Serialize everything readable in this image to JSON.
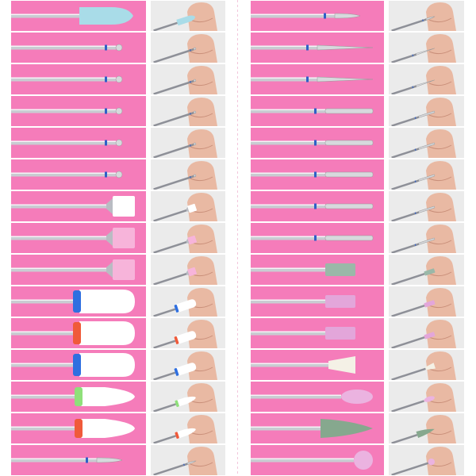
{
  "colors": {
    "background": "#f57cba",
    "thumb_background": "#ebebeb",
    "metal": "#c9ccd2",
    "skin": "#e9b9a3"
  },
  "columns": [
    {
      "bits": [
        {
          "type": "silicone-cone",
          "head": "#a9dce8",
          "band": null
        },
        {
          "type": "ball",
          "head": "#d7d9dd",
          "band": "#2f5fc8"
        },
        {
          "type": "ball",
          "head": "#d7d9dd",
          "band": "#2f5fc8"
        },
        {
          "type": "ball",
          "head": "#d7d9dd",
          "band": "#2f5fc8"
        },
        {
          "type": "ball",
          "head": "#d7d9dd",
          "band": "#2f5fc8"
        },
        {
          "type": "ball",
          "head": "#d7d9dd",
          "band": "#2f5fc8"
        },
        {
          "type": "brush",
          "head": "#ffffff",
          "band": null
        },
        {
          "type": "brush",
          "head": "#f7b4da",
          "band": null
        },
        {
          "type": "brush",
          "head": "#f7b4da",
          "band": null
        },
        {
          "type": "ceramic-barrel",
          "head": "#ffffff",
          "band": "#2f6fe0"
        },
        {
          "type": "ceramic-barrel",
          "head": "#ffffff",
          "band": "#f05a3a"
        },
        {
          "type": "ceramic-barrel",
          "head": "#ffffff",
          "band": "#2f6fe0"
        },
        {
          "type": "ceramic-cone",
          "head": "#ffffff",
          "band": "#8fe07a"
        },
        {
          "type": "ceramic-cone",
          "head": "#ffffff",
          "band": "#f05a3a"
        },
        {
          "type": "flame",
          "head": "#d7d9dd",
          "band": "#2f5fc8"
        }
      ]
    },
    {
      "bits": [
        {
          "type": "flame",
          "head": "#d7d9dd",
          "band": "#2f5fc8"
        },
        {
          "type": "needle",
          "head": "#d7d9dd",
          "band": "#2f5fc8"
        },
        {
          "type": "needle",
          "head": "#d7d9dd",
          "band": "#2f5fc8"
        },
        {
          "type": "cylinder",
          "head": "#d7d9dd",
          "band": "#2f5fc8"
        },
        {
          "type": "cylinder",
          "head": "#d7d9dd",
          "band": "#2f5fc8"
        },
        {
          "type": "cylinder",
          "head": "#d7d9dd",
          "band": "#2f5fc8"
        },
        {
          "type": "cylinder",
          "head": "#d7d9dd",
          "band": "#2f5fc8"
        },
        {
          "type": "cylinder",
          "head": "#d7d9dd",
          "band": "#2f5fc8"
        },
        {
          "type": "stone-cylinder",
          "head": "#9ab8a8",
          "band": null
        },
        {
          "type": "stone-cylinder",
          "head": "#e3a6da",
          "band": null
        },
        {
          "type": "stone-cylinder",
          "head": "#e3a6da",
          "band": null
        },
        {
          "type": "stone-cone",
          "head": "#f4f1e6",
          "band": null
        },
        {
          "type": "stone-oval",
          "head": "#ebb3e0",
          "band": null
        },
        {
          "type": "rubber-cone",
          "head": "#86a88e",
          "band": null
        },
        {
          "type": "stone-ball",
          "head": "#ebb3e0",
          "band": null
        }
      ]
    }
  ]
}
